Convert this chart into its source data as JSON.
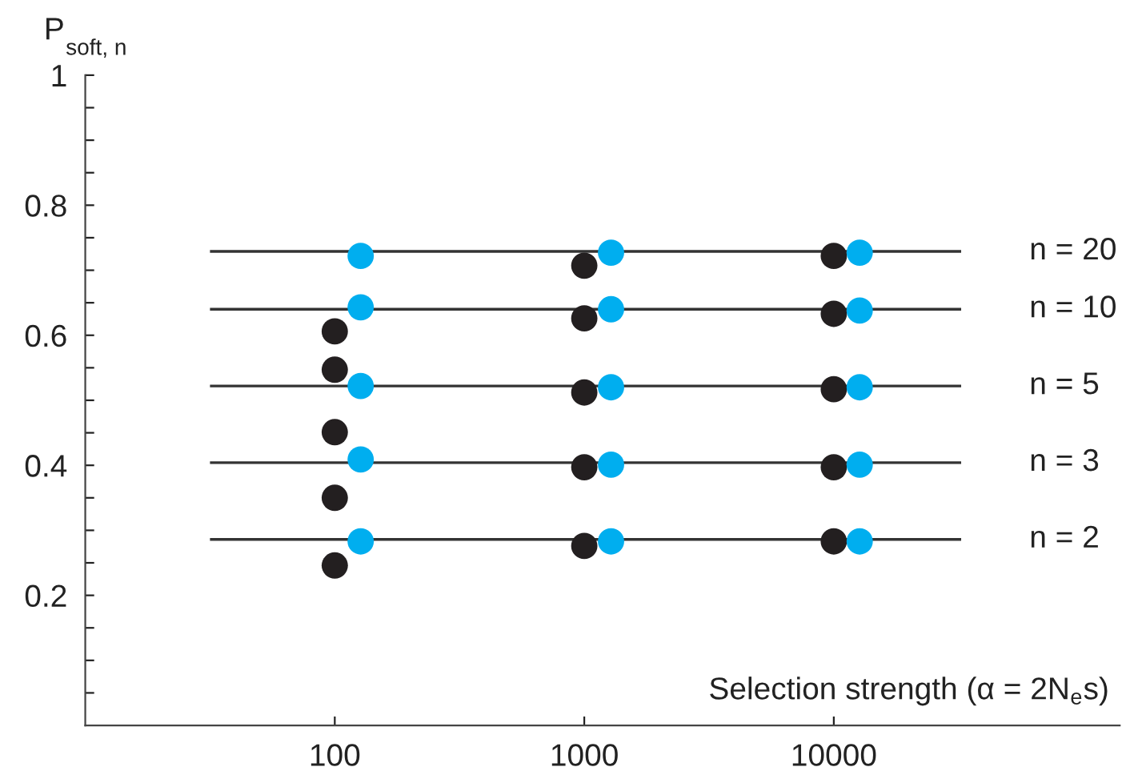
{
  "chart_data": {
    "type": "scatter",
    "ylabel": "P$_{soft, n}$",
    "xlabel": "Selection strength (α = 2N$_{e}$s)",
    "log": "x",
    "xlim": [
      10,
      140000
    ],
    "xticks": [
      100,
      1000,
      10000
    ],
    "ylim": [
      0,
      1
    ],
    "yticks": [
      {
        "value": 0.05,
        "label": null
      },
      {
        "value": 0.1,
        "label": null
      },
      {
        "value": 0.15,
        "label": null
      },
      0.2,
      {
        "value": 0.25,
        "label": null
      },
      {
        "value": 0.3,
        "label": null
      },
      {
        "value": 0.35,
        "label": null
      },
      0.4,
      {
        "value": 0.45,
        "label": null
      },
      {
        "value": 0.5,
        "label": null
      },
      {
        "value": 0.55,
        "label": null
      },
      0.6,
      {
        "value": 0.65,
        "label": null
      },
      {
        "value": 0.7,
        "label": null
      },
      {
        "value": 0.75,
        "label": null
      },
      0.8,
      {
        "value": 0.85,
        "label": null
      },
      {
        "value": 0.9,
        "label": null
      },
      {
        "value": 0.95,
        "label": null
      },
      1
    ],
    "grid": false,
    "legend": false,
    "series": [
      {
        "type": "line",
        "name": "n = 20",
        "color": "#333333",
        "x": [
          32,
          32000
        ],
        "values": [
          0.729,
          0.729
        ]
      },
      {
        "type": "line",
        "name": "n = 10",
        "color": "#333333",
        "x": [
          32,
          32000
        ],
        "values": [
          0.64,
          0.64
        ]
      },
      {
        "type": "line",
        "name": "n = 5",
        "color": "#333333",
        "x": [
          32,
          32000
        ],
        "values": [
          0.522,
          0.522
        ]
      },
      {
        "type": "line",
        "name": "n = 3",
        "color": "#333333",
        "x": [
          32,
          32000
        ],
        "values": [
          0.404,
          0.404
        ]
      },
      {
        "type": "line",
        "name": "n = 2",
        "color": "#333333",
        "x": [
          32,
          32000
        ],
        "values": [
          0.286,
          0.286
        ]
      },
      {
        "marker": "circle",
        "color": "#231f20",
        "x": [
          100,
          100,
          100,
          100,
          100,
          1000,
          1000,
          1000,
          1000,
          1000,
          10000,
          10000,
          10000,
          10000,
          10000
        ],
        "values": [
          0.606,
          0.547,
          0.451,
          0.35,
          0.246,
          0.707,
          0.626,
          0.512,
          0.397,
          0.276,
          0.722,
          0.633,
          0.517,
          0.397,
          0.283
        ]
      },
      {
        "marker": "circle",
        "color": "#00aeef",
        "x": [
          127,
          127,
          127,
          127,
          127,
          1280,
          1280,
          1280,
          1280,
          1280,
          12700,
          12700,
          12700,
          12700,
          12700
        ],
        "values": [
          0.722,
          0.643,
          0.522,
          0.409,
          0.283,
          0.727,
          0.64,
          0.52,
          0.401,
          0.283,
          0.727,
          0.638,
          0.52,
          0.401,
          0.283
        ]
      }
    ]
  }
}
